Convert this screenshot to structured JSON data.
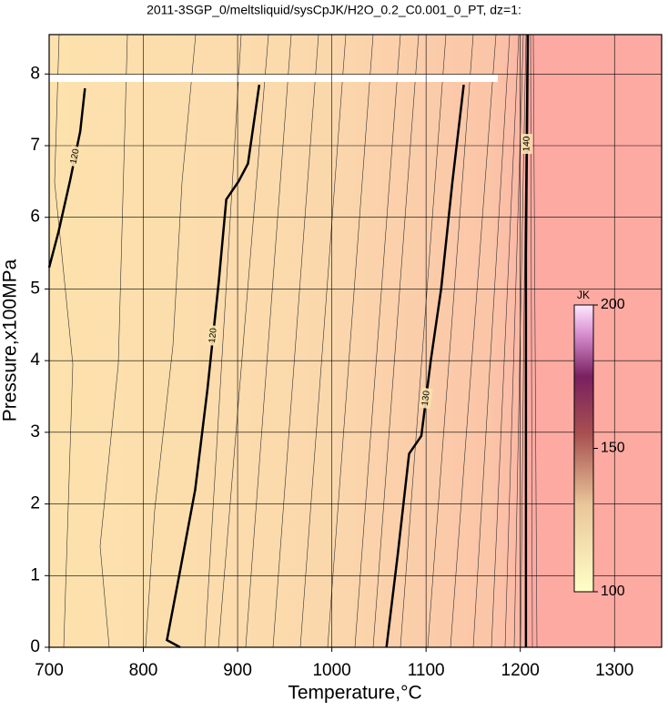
{
  "chart_data": {
    "type": "contour",
    "title": "2011-3SGP_0/meltsliquid/sysCpJK/H2O_0.2_C0.001_0_PT, dz=1:",
    "x_label": "Temperature,°C",
    "y_label": "Pressure,x100MPa",
    "xlim": [
      700,
      1350
    ],
    "xticks": [
      700,
      800,
      900,
      1000,
      1100,
      1200,
      1300
    ],
    "ylim": [
      0,
      8.55
    ],
    "yticks": [
      0,
      1,
      2,
      3,
      4,
      5,
      6,
      7,
      8
    ],
    "grid": true,
    "series": [
      {
        "name": "120",
        "color": "#000000",
        "x": [
          700,
          710,
          722,
          733,
          738
        ],
        "y": [
          5.3,
          5.8,
          6.5,
          7.2,
          7.8
        ]
      },
      {
        "name": "120",
        "color": "#000000",
        "x": [
          839,
          825,
          838,
          855,
          868,
          880,
          888,
          901,
          911,
          923
        ],
        "y": [
          0,
          0.1,
          1,
          2.2,
          3.6,
          5.1,
          6.25,
          6.5,
          6.75,
          7.85
        ]
      },
      {
        "name": "130",
        "color": "#000000",
        "x": [
          1058,
          1070,
          1082,
          1095,
          1105,
          1116,
          1128,
          1140
        ],
        "y": [
          0,
          1.3,
          2.7,
          2.95,
          4,
          5.0,
          6.5,
          7.85
        ]
      },
      {
        "name": "140",
        "color": "#000000",
        "x": [
          1206,
          1206,
          1208
        ],
        "y": [
          0,
          5.5,
          8.55
        ]
      }
    ],
    "colorbar": {
      "label": "JK",
      "lim": [
        100,
        200
      ],
      "ticks": [
        100,
        150,
        200
      ]
    }
  }
}
